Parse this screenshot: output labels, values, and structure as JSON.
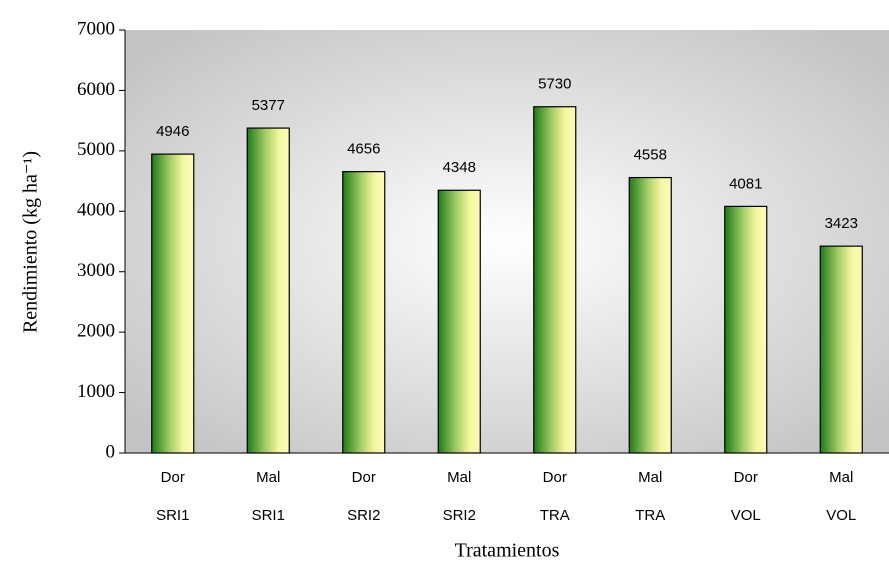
{
  "chart_data": {
    "type": "bar",
    "x_label": "Tratamientos",
    "y_label": "Rendimiento (kg ha⁻¹)",
    "categories": [
      [
        "Dor",
        "SRI1"
      ],
      [
        "Mal",
        "SRI1"
      ],
      [
        "Dor",
        "SRI2"
      ],
      [
        "Mal",
        "SRI2"
      ],
      [
        "Dor",
        "TRA"
      ],
      [
        "Mal",
        "TRA"
      ],
      [
        "Dor",
        "VOL"
      ],
      [
        "Mal",
        "VOL"
      ]
    ],
    "values": [
      4946,
      5377,
      4656,
      4348,
      5730,
      4558,
      4081,
      3423
    ],
    "ylim": [
      0,
      7000
    ],
    "yticks": [
      0,
      1000,
      2000,
      3000,
      4000,
      5000,
      6000,
      7000
    ],
    "color": "#2e8b1e"
  }
}
